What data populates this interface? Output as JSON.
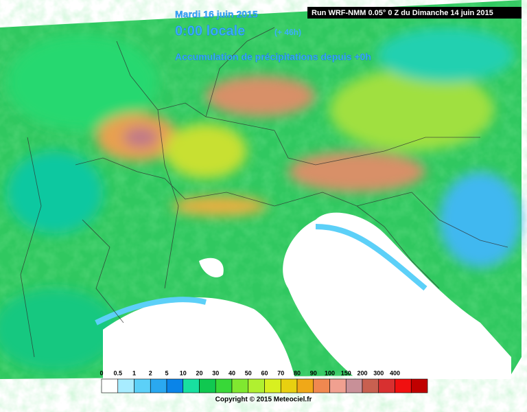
{
  "header": {
    "date": "Mardi 16 juin 2015",
    "time": "0:00 locale",
    "lead": "(+ 46h)",
    "subtitle": "Accumulation de précipitations depuis +0h",
    "run": "Run WRF-NMM 0.05° 0 Z du Dimanche 14 juin 2015"
  },
  "legend": {
    "labels": [
      0,
      0.5,
      1,
      2,
      5,
      10,
      20,
      30,
      40,
      50,
      60,
      70,
      80,
      90,
      100,
      150,
      200,
      300,
      400
    ],
    "colors": [
      "#ffffff",
      "#a8ecff",
      "#5cd0f8",
      "#2aa8f0",
      "#0a84e8",
      "#18e0a0",
      "#10c850",
      "#38d838",
      "#80e830",
      "#b0f030",
      "#d8f020",
      "#e8d010",
      "#f0a818",
      "#f08850",
      "#f0a090",
      "#c89098",
      "#c86050",
      "#d83030",
      "#f01010",
      "#c00000"
    ]
  },
  "footer": {
    "copyright": "Copyright © 2015 Meteociel.fr"
  }
}
